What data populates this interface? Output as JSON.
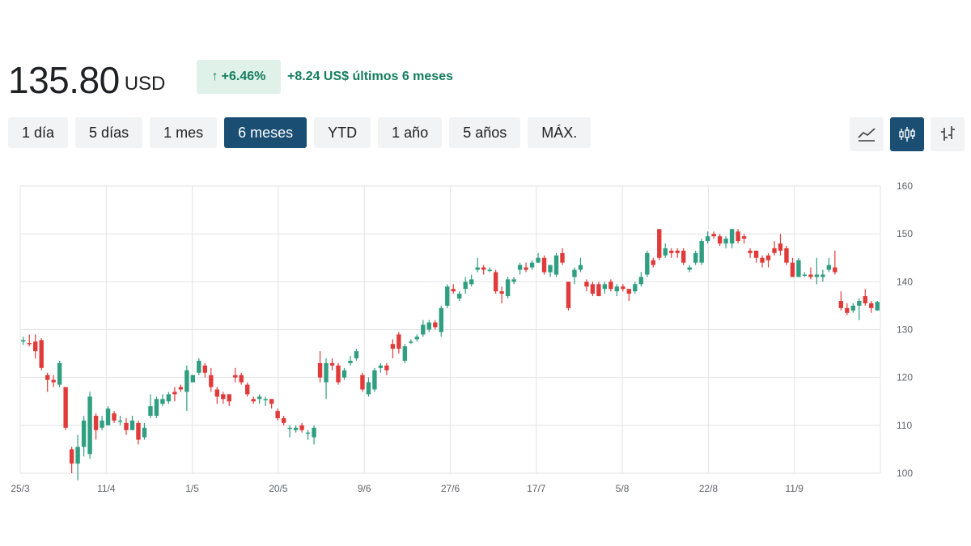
{
  "quote": {
    "price": "135.80",
    "currency": "USD",
    "change_pct": "+6.46%",
    "change_abs": "+8.24 US$ últimos 6 meses",
    "colors": {
      "positive": "#137d5d",
      "positive_bg": "#dff1e9",
      "up": "#2f9e81",
      "down": "#e03a3a",
      "accent": "#1a4e73"
    }
  },
  "ranges": [
    {
      "label": "1 día"
    },
    {
      "label": "5 días"
    },
    {
      "label": "1 mes"
    },
    {
      "label": "6 meses",
      "active": true
    },
    {
      "label": "YTD"
    },
    {
      "label": "1 año"
    },
    {
      "label": "5 años"
    },
    {
      "label": "MÁX."
    }
  ],
  "chart_types": [
    {
      "name": "line-chart-icon",
      "active": false
    },
    {
      "name": "candlestick-chart-icon",
      "active": true
    },
    {
      "name": "ohlc-chart-icon",
      "active": false
    }
  ],
  "chart_data": {
    "type": "candlestick",
    "title": "",
    "xlabel": "",
    "ylabel": "",
    "ylim": [
      100,
      160
    ],
    "yticks": [
      100,
      110,
      120,
      130,
      140,
      150,
      160
    ],
    "xticks": [
      "25/3",
      "11/4",
      "1/5",
      "20/5",
      "9/6",
      "27/6",
      "17/7",
      "5/8",
      "22/8",
      "11/9"
    ],
    "grid": true,
    "y_axis_position": "right",
    "candles": [
      [
        127.5,
        127.8,
        128.5,
        126.8
      ],
      [
        127.2,
        127.0,
        129.0,
        126.5
      ],
      [
        127.5,
        125.5,
        129.0,
        124.0
      ],
      [
        127.8,
        122.0,
        128.2,
        121.5
      ],
      [
        120.5,
        119.5,
        121.0,
        117.0
      ],
      [
        119.5,
        119.0,
        120.5,
        118.0
      ],
      [
        118.5,
        123.0,
        123.5,
        118.0
      ],
      [
        118.0,
        109.5,
        118.0,
        109.0
      ],
      [
        105.0,
        102.0,
        105.5,
        100.0
      ],
      [
        102.0,
        105.5,
        108.0,
        98.5
      ],
      [
        105.5,
        111.0,
        112.0,
        103.5
      ],
      [
        104.0,
        116.0,
        117.0,
        103.0
      ],
      [
        112.0,
        109.0,
        112.5,
        107.0
      ],
      [
        109.5,
        111.0,
        112.0,
        109.0
      ],
      [
        110.0,
        113.5,
        114.0,
        110.0
      ],
      [
        112.5,
        111.0,
        113.0,
        110.5
      ],
      [
        111.0,
        111.0,
        112.0,
        110.0
      ],
      [
        110.5,
        109.0,
        111.5,
        108.0
      ],
      [
        109.0,
        111.0,
        112.0,
        109.0
      ],
      [
        110.5,
        107.0,
        111.0,
        106.0
      ],
      [
        107.5,
        109.5,
        110.5,
        107.0
      ],
      [
        112.0,
        114.0,
        116.5,
        111.5
      ],
      [
        112.0,
        115.5,
        116.0,
        111.5
      ],
      [
        114.5,
        115.5,
        116.5,
        114.0
      ],
      [
        115.0,
        116.5,
        117.0,
        114.5
      ],
      [
        117.0,
        116.5,
        118.0,
        115.0
      ],
      [
        118.0,
        117.5,
        118.5,
        117.0
      ],
      [
        117.0,
        121.5,
        122.5,
        113.0
      ],
      [
        119.0,
        120.5,
        120.5,
        119.0
      ],
      [
        121.0,
        123.5,
        124.0,
        120.5
      ],
      [
        122.5,
        121.0,
        123.0,
        120.0
      ],
      [
        120.5,
        118.0,
        122.0,
        117.0
      ],
      [
        117.5,
        116.0,
        118.0,
        114.5
      ],
      [
        116.5,
        115.5,
        117.0,
        114.5
      ],
      [
        116.5,
        115.0,
        116.5,
        114.0
      ],
      [
        120.5,
        120.0,
        122.0,
        119.0
      ],
      [
        120.5,
        119.0,
        121.0,
        118.5
      ],
      [
        118.5,
        116.5,
        119.0,
        116.0
      ],
      [
        115.5,
        115.0,
        116.0,
        114.5
      ],
      [
        115.5,
        116.0,
        116.5,
        114.5
      ],
      [
        115.5,
        115.5,
        116.0,
        114.0
      ],
      [
        115.5,
        114.5,
        115.5,
        113.5
      ],
      [
        113.0,
        111.5,
        113.5,
        111.0
      ],
      [
        111.5,
        110.5,
        112.0,
        110.0
      ],
      [
        109.5,
        109.5,
        110.0,
        107.5
      ],
      [
        109.0,
        109.5,
        110.0,
        108.5
      ],
      [
        110.0,
        109.0,
        110.5,
        108.5
      ],
      [
        108.5,
        108.5,
        109.0,
        107.0
      ],
      [
        107.5,
        109.5,
        110.0,
        106.0
      ],
      [
        123.0,
        120.0,
        125.5,
        119.0
      ],
      [
        119.0,
        123.0,
        124.0,
        115.5
      ],
      [
        123.0,
        122.5,
        124.0,
        121.5
      ],
      [
        122.5,
        119.0,
        123.0,
        118.5
      ],
      [
        120.0,
        121.5,
        122.0,
        119.5
      ],
      [
        123.0,
        123.5,
        124.5,
        122.5
      ],
      [
        124.0,
        125.5,
        126.0,
        123.5
      ],
      [
        120.5,
        117.5,
        121.0,
        117.0
      ],
      [
        116.5,
        119.0,
        120.0,
        116.0
      ],
      [
        117.5,
        121.5,
        122.0,
        117.0
      ],
      [
        122.0,
        122.5,
        123.0,
        121.0
      ],
      [
        122.5,
        121.5,
        123.0,
        120.5
      ],
      [
        127.0,
        126.0,
        128.0,
        124.0
      ],
      [
        129.0,
        126.0,
        129.5,
        125.0
      ],
      [
        123.5,
        126.5,
        127.0,
        123.0
      ],
      [
        127.5,
        127.5,
        128.0,
        127.0
      ],
      [
        128.0,
        128.5,
        129.0,
        127.5
      ],
      [
        129.0,
        131.0,
        132.0,
        128.5
      ],
      [
        130.0,
        131.5,
        132.0,
        129.5
      ],
      [
        131.5,
        130.5,
        132.0,
        130.0
      ],
      [
        129.5,
        134.5,
        135.0,
        128.5
      ],
      [
        135.0,
        139.0,
        139.5,
        134.5
      ],
      [
        138.5,
        138.0,
        139.5,
        137.5
      ],
      [
        136.5,
        137.5,
        138.0,
        136.0
      ],
      [
        138.5,
        140.0,
        141.0,
        137.5
      ],
      [
        139.5,
        140.5,
        141.5,
        139.0
      ],
      [
        142.5,
        143.0,
        145.0,
        142.0
      ],
      [
        143.0,
        142.5,
        143.5,
        141.5
      ],
      [
        142.5,
        142.5,
        143.0,
        142.0
      ],
      [
        142.0,
        138.0,
        142.5,
        137.5
      ],
      [
        138.0,
        137.5,
        139.0,
        135.5
      ],
      [
        137.0,
        140.5,
        141.0,
        136.5
      ],
      [
        140.0,
        140.5,
        141.0,
        139.5
      ],
      [
        142.5,
        143.5,
        144.0,
        141.5
      ],
      [
        143.0,
        142.5,
        144.0,
        142.0
      ],
      [
        143.0,
        144.0,
        144.5,
        142.5
      ],
      [
        144.0,
        145.0,
        146.0,
        144.0
      ],
      [
        145.0,
        142.0,
        145.5,
        141.5
      ],
      [
        142.0,
        143.5,
        143.5,
        141.0
      ],
      [
        141.5,
        145.5,
        146.0,
        141.0
      ],
      [
        146.0,
        144.0,
        147.0,
        143.5
      ],
      [
        140.0,
        134.5,
        140.0,
        134.0
      ],
      [
        141.0,
        142.5,
        143.0,
        139.5
      ],
      [
        142.5,
        143.5,
        145.0,
        142.0
      ],
      [
        140.0,
        139.0,
        140.5,
        138.0
      ],
      [
        139.5,
        137.5,
        140.0,
        137.0
      ],
      [
        139.5,
        137.0,
        140.0,
        137.0
      ],
      [
        138.5,
        139.5,
        140.0,
        137.5
      ],
      [
        140.0,
        138.5,
        140.5,
        138.0
      ],
      [
        138.0,
        139.0,
        139.5,
        137.0
      ],
      [
        139.0,
        138.5,
        139.5,
        138.0
      ],
      [
        138.5,
        137.5,
        138.5,
        136.0
      ],
      [
        138.0,
        139.5,
        140.0,
        137.5
      ],
      [
        139.5,
        141.0,
        142.0,
        139.0
      ],
      [
        141.5,
        146.0,
        146.5,
        141.0
      ],
      [
        144.5,
        143.5,
        145.0,
        143.0
      ],
      [
        151.0,
        145.0,
        151.0,
        144.5
      ],
      [
        145.5,
        147.0,
        148.0,
        145.0
      ],
      [
        146.5,
        146.0,
        147.0,
        145.0
      ],
      [
        146.5,
        146.0,
        147.0,
        145.0
      ],
      [
        146.5,
        144.0,
        147.0,
        143.5
      ],
      [
        142.5,
        143.0,
        143.5,
        142.0
      ],
      [
        144.0,
        146.0,
        146.5,
        143.5
      ],
      [
        144.0,
        148.5,
        149.0,
        143.5
      ],
      [
        148.5,
        149.5,
        150.5,
        148.0
      ],
      [
        150.0,
        149.5,
        150.5,
        149.0
      ],
      [
        149.5,
        148.0,
        150.0,
        147.5
      ],
      [
        148.0,
        149.0,
        149.5,
        147.0
      ],
      [
        148.0,
        151.0,
        151.0,
        147.0
      ],
      [
        150.5,
        148.5,
        151.0,
        148.0
      ],
      [
        149.5,
        149.0,
        150.0,
        148.0
      ],
      [
        146.5,
        146.0,
        147.0,
        145.0
      ],
      [
        146.5,
        145.0,
        146.5,
        144.0
      ],
      [
        145.0,
        144.0,
        145.5,
        143.0
      ],
      [
        145.5,
        144.5,
        146.0,
        143.0
      ],
      [
        147.0,
        146.0,
        148.5,
        145.5
      ],
      [
        148.0,
        146.5,
        150.0,
        145.5
      ],
      [
        147.0,
        144.0,
        147.5,
        143.5
      ],
      [
        144.0,
        141.0,
        145.0,
        141.0
      ],
      [
        141.0,
        144.5,
        145.0,
        141.0
      ],
      [
        141.5,
        141.5,
        142.0,
        141.0
      ],
      [
        141.5,
        141.0,
        143.0,
        140.5
      ],
      [
        141.0,
        141.5,
        145.0,
        139.5
      ],
      [
        141.0,
        141.5,
        142.5,
        140.0
      ],
      [
        142.5,
        143.5,
        145.0,
        142.0
      ],
      [
        143.0,
        142.0,
        146.5,
        141.5
      ],
      [
        136.0,
        134.5,
        138.0,
        134.0
      ],
      [
        134.5,
        133.5,
        135.5,
        133.0
      ],
      [
        134.0,
        135.0,
        135.5,
        133.5
      ],
      [
        135.0,
        136.0,
        136.5,
        132.0
      ],
      [
        137.0,
        135.5,
        138.5,
        135.0
      ],
      [
        135.5,
        134.5,
        136.0,
        133.5
      ],
      [
        134.0,
        135.8,
        136.0,
        134.0
      ]
    ]
  }
}
